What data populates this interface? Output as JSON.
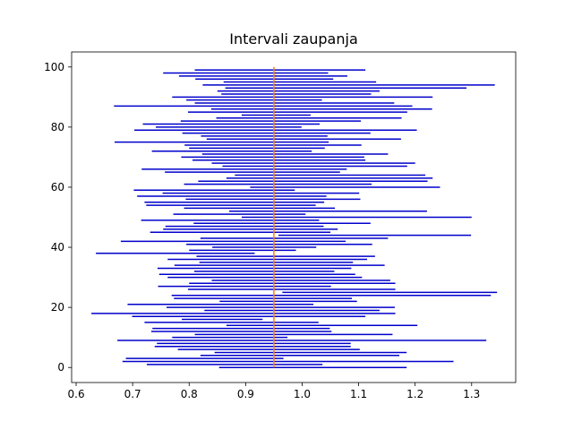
{
  "chart_data": {
    "type": "interval",
    "title": "Intervali zaupanja",
    "xlabel": "",
    "ylabel": "",
    "xlim": [
      0.592,
      1.378
    ],
    "ylim": [
      -5,
      105
    ],
    "xticks": [
      0.6,
      0.7,
      0.8,
      0.9,
      1.0,
      1.1,
      1.2,
      1.3
    ],
    "xtick_labels": [
      "0.6",
      "0.7",
      "0.8",
      "0.9",
      "1.0",
      "1.1",
      "1.2",
      "1.3"
    ],
    "yticks": [
      0,
      20,
      40,
      60,
      80,
      100
    ],
    "ytick_labels": [
      "0",
      "20",
      "40",
      "60",
      "80",
      "100"
    ],
    "grid": false,
    "interval_color": "#0000cc",
    "reference_line": {
      "value": 0.95,
      "y_range": [
        0,
        100
      ],
      "color": "#ff7f0e"
    },
    "intervals": [
      [
        0.853,
        1.185
      ],
      [
        0.725,
        1.036
      ],
      [
        0.682,
        1.268
      ],
      [
        0.688,
        0.967
      ],
      [
        0.82,
        1.172
      ],
      [
        0.845,
        1.185
      ],
      [
        0.78,
        1.102
      ],
      [
        0.739,
        1.086
      ],
      [
        0.743,
        1.086
      ],
      [
        0.673,
        1.326
      ],
      [
        0.77,
        0.974
      ],
      [
        0.81,
        1.16
      ],
      [
        0.733,
        1.052
      ],
      [
        0.735,
        1.049
      ],
      [
        0.866,
        1.204
      ],
      [
        0.721,
        1.029
      ],
      [
        0.787,
        0.93
      ],
      [
        0.699,
        1.112
      ],
      [
        0.627,
        1.165
      ],
      [
        0.827,
        1.137
      ],
      [
        0.76,
        1.164
      ],
      [
        0.691,
        1.02
      ],
      [
        0.854,
        1.097
      ],
      [
        0.773,
        1.088
      ],
      [
        0.769,
        1.334
      ],
      [
        0.965,
        1.345
      ],
      [
        0.798,
        1.165
      ],
      [
        0.745,
        1.051
      ],
      [
        0.8,
        1.165
      ],
      [
        0.84,
        1.156
      ],
      [
        0.762,
        1.106
      ],
      [
        0.747,
        1.094
      ],
      [
        0.809,
        1.057
      ],
      [
        0.744,
        1.087
      ],
      [
        0.774,
        1.146
      ],
      [
        0.818,
        1.09
      ],
      [
        0.762,
        1.115
      ],
      [
        0.813,
        1.129
      ],
      [
        0.635,
        0.916
      ],
      [
        0.8,
        0.989
      ],
      [
        0.841,
        1.025
      ],
      [
        0.795,
        1.124
      ],
      [
        0.679,
        1.077
      ],
      [
        0.82,
        1.152
      ],
      [
        0.958,
        1.299
      ],
      [
        0.731,
        1.05
      ],
      [
        0.754,
        1.063
      ],
      [
        0.758,
        1.038
      ],
      [
        0.808,
        1.121
      ],
      [
        0.715,
        1.03
      ],
      [
        0.893,
        1.3
      ],
      [
        0.772,
        1.006
      ],
      [
        0.871,
        1.221
      ],
      [
        0.791,
        1.058
      ],
      [
        0.724,
        1.024
      ],
      [
        0.721,
        1.039
      ],
      [
        0.794,
        1.103
      ],
      [
        0.708,
        1.043
      ],
      [
        0.753,
        1.101
      ],
      [
        0.702,
        0.987
      ],
      [
        0.908,
        1.244
      ],
      [
        0.791,
        1.123
      ],
      [
        0.816,
        1.222
      ],
      [
        0.866,
        1.231
      ],
      [
        0.881,
        1.218
      ],
      [
        0.757,
        1.067
      ],
      [
        0.716,
        1.079
      ],
      [
        0.859,
        1.186
      ],
      [
        0.84,
        1.2
      ],
      [
        0.806,
        1.112
      ],
      [
        0.786,
        1.11
      ],
      [
        0.823,
        1.152
      ],
      [
        0.734,
        1.017
      ],
      [
        0.8,
        1.04
      ],
      [
        0.792,
        1.105
      ],
      [
        0.668,
        1.047
      ],
      [
        0.831,
        1.175
      ],
      [
        0.821,
        1.045
      ],
      [
        0.788,
        1.121
      ],
      [
        0.703,
        1.203
      ],
      [
        0.741,
        0.999
      ],
      [
        0.718,
        1.031
      ],
      [
        0.785,
        1.104
      ],
      [
        0.848,
        1.176
      ],
      [
        0.893,
        1.015
      ],
      [
        0.798,
        1.186
      ],
      [
        0.839,
        1.23
      ],
      [
        0.667,
        1.195
      ],
      [
        0.81,
        1.163
      ],
      [
        0.795,
        1.035
      ],
      [
        0.77,
        1.231
      ],
      [
        0.857,
        1.122
      ],
      [
        0.85,
        1.137
      ],
      [
        0.864,
        1.291
      ],
      [
        0.824,
        1.341
      ],
      [
        0.861,
        1.131
      ],
      [
        0.811,
        1.055
      ],
      [
        0.782,
        1.08
      ],
      [
        0.754,
        1.046
      ],
      [
        0.81,
        1.112
      ]
    ]
  }
}
